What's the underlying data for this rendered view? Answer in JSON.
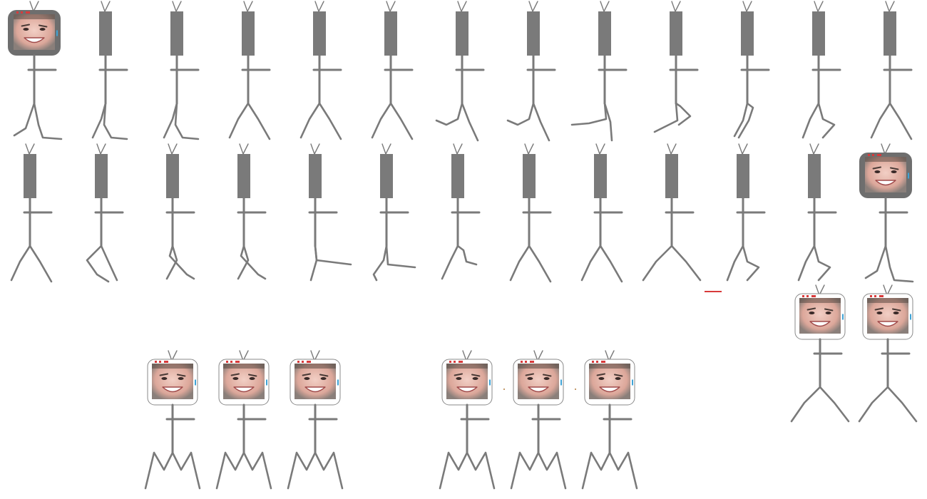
{
  "sheet": {
    "background": "#ffffff",
    "figure_color": "#7a7a7a",
    "frame_color": "#6e6e6e",
    "accent_red": "#d83a3a",
    "accent_blue": "#3fa3d6",
    "accent_tan": "#c49a6a"
  },
  "rows": [
    {
      "name": "walk-row-1",
      "frames": [
        {
          "head": "face-filled",
          "legs": "stride-wide"
        },
        {
          "head": "box",
          "legs": "stride-back"
        },
        {
          "head": "box",
          "legs": "stride-back"
        },
        {
          "head": "box",
          "legs": "split"
        },
        {
          "head": "box",
          "legs": "split"
        },
        {
          "head": "box",
          "legs": "split"
        },
        {
          "head": "box",
          "legs": "kick-left"
        },
        {
          "head": "box",
          "legs": "kick-left"
        },
        {
          "head": "box",
          "legs": "kick-flat"
        },
        {
          "head": "box",
          "legs": "curl"
        },
        {
          "head": "box",
          "legs": "curl-small"
        },
        {
          "head": "box",
          "legs": "step-forward"
        },
        {
          "head": "box",
          "legs": "split"
        }
      ]
    },
    {
      "name": "walk-row-2",
      "frames": [
        {
          "head": "box",
          "legs": "split"
        },
        {
          "head": "box",
          "legs": "step-back"
        },
        {
          "head": "box",
          "legs": "cross"
        },
        {
          "head": "box",
          "legs": "cross"
        },
        {
          "head": "box",
          "legs": "kick-right"
        },
        {
          "head": "box",
          "legs": "lift"
        },
        {
          "head": "box",
          "legs": "lift-small"
        },
        {
          "head": "box",
          "legs": "split"
        },
        {
          "head": "box",
          "legs": "split"
        },
        {
          "head": "box",
          "legs": "split-wide"
        },
        {
          "head": "box",
          "legs": "step-forward"
        },
        {
          "head": "box",
          "legs": "step-forward"
        },
        {
          "head": "face-filled",
          "legs": "stride-wide"
        }
      ]
    },
    {
      "name": "pose-group-left",
      "frames": [
        {
          "head": "face-outline",
          "legs": "zigzag"
        },
        {
          "head": "face-outline",
          "legs": "zigzag"
        },
        {
          "head": "face-outline",
          "legs": "zigzag"
        }
      ]
    },
    {
      "name": "pose-group-middle",
      "frames": [
        {
          "head": "face-outline",
          "legs": "zigzag"
        },
        {
          "head": "face-outline",
          "legs": "zigzag"
        },
        {
          "head": "face-outline",
          "legs": "zigzag"
        }
      ]
    },
    {
      "name": "pose-group-right",
      "frames": [
        {
          "head": "face-outline",
          "legs": "split-wide"
        },
        {
          "head": "face-outline",
          "legs": "split-wide"
        }
      ]
    }
  ]
}
